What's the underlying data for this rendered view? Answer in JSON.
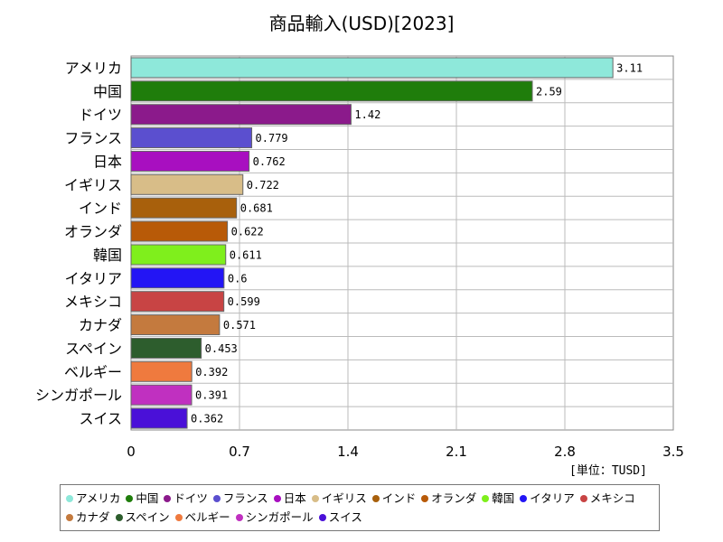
{
  "chart_data": {
    "type": "bar",
    "orientation": "horizontal",
    "title": "商品輸入(USD)[2023]",
    "unit_label": "[単位：TUSD]",
    "xlim": [
      0,
      3.5
    ],
    "x_ticks": [
      "0",
      "0.7",
      "1.4",
      "2.1",
      "2.8",
      "3.5"
    ],
    "grid": true,
    "legend_position": "bottom",
    "categories": [
      "アメリカ",
      "中国",
      "ドイツ",
      "フランス",
      "日本",
      "イギリス",
      "インド",
      "オランダ",
      "韓国",
      "イタリア",
      "メキシコ",
      "カナダ",
      "スペイン",
      "ベルギー",
      "シンガポール",
      "スイス"
    ],
    "values": [
      3.11,
      2.59,
      1.42,
      0.779,
      0.762,
      0.722,
      0.681,
      0.622,
      0.611,
      0.6,
      0.599,
      0.571,
      0.453,
      0.392,
      0.391,
      0.362
    ],
    "value_labels": [
      "3.11",
      "2.59",
      "1.42",
      "0.779",
      "0.762",
      "0.722",
      "0.681",
      "0.622",
      "0.611",
      "0.6",
      "0.599",
      "0.571",
      "0.453",
      "0.392",
      "0.391",
      "0.362"
    ],
    "colors": [
      "#8ee8da",
      "#1f7d0b",
      "#8b1a8b",
      "#5b4fcf",
      "#a80fc0",
      "#d8bd88",
      "#a8600c",
      "#b85a08",
      "#7fef1c",
      "#2315f5",
      "#c84444",
      "#c47a3e",
      "#2d5d2d",
      "#ef7a3e",
      "#c030c0",
      "#4a10d8"
    ]
  }
}
